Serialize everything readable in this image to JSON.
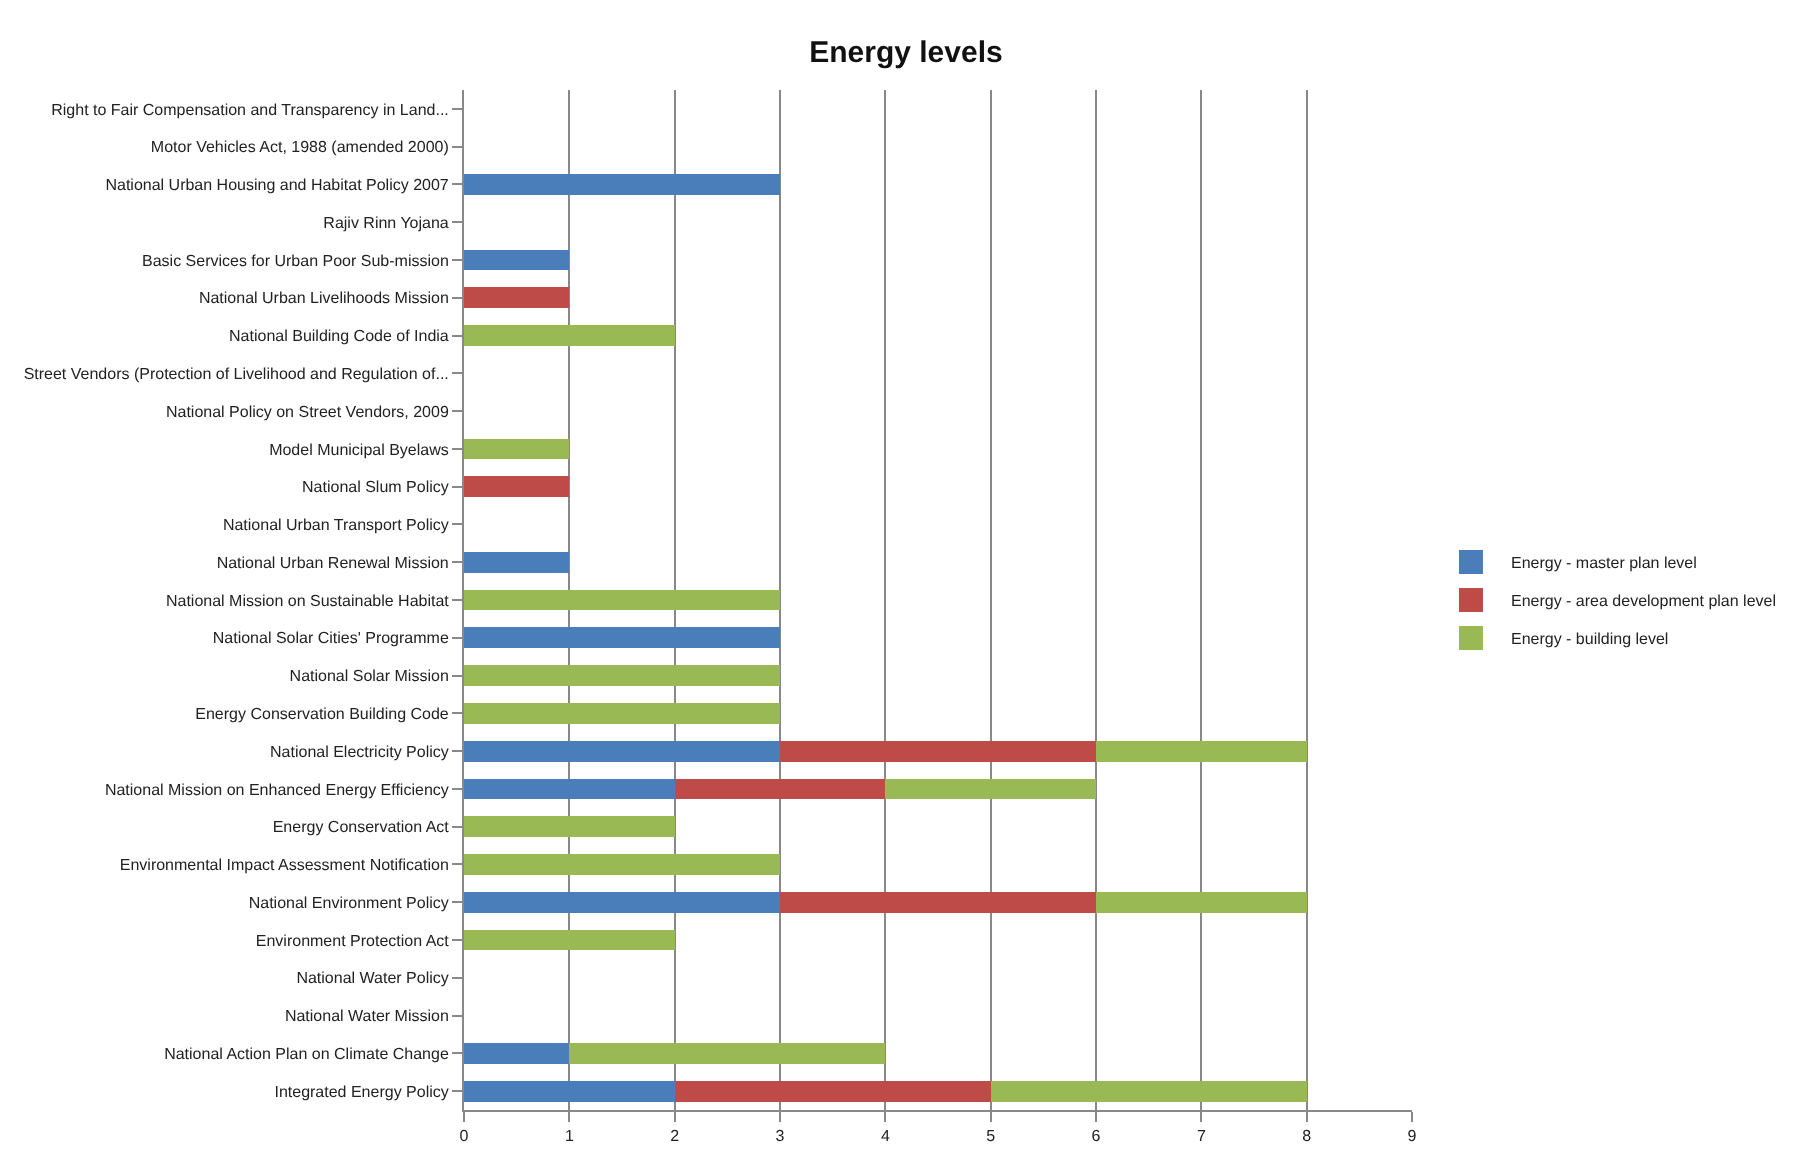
{
  "chart_data": {
    "type": "bar",
    "orientation": "horizontal",
    "stacked": true,
    "title": "Energy levels",
    "categories": [
      "Right to Fair Compensation and Transparency in Land...",
      "Motor Vehicles Act, 1988 (amended 2000)",
      "National Urban Housing and Habitat Policy 2007",
      "Rajiv Rinn Yojana",
      "Basic Services for Urban Poor Sub-mission",
      "National Urban Livelihoods Mission",
      "National Building Code of India",
      "Street Vendors (Protection of Livelihood and Regulation of...",
      "National Policy on Street Vendors, 2009",
      "Model Municipal Byelaws",
      "National Slum Policy",
      "National Urban Transport Policy",
      "National Urban Renewal Mission",
      "National Mission on Sustainable Habitat",
      "National Solar Cities' Programme",
      "National Solar Mission",
      "Energy Conservation Building Code",
      "National Electricity Policy",
      "National Mission on Enhanced Energy Efficiency",
      "Energy Conservation Act",
      "Environmental Impact Assessment Notification",
      "National Environment Policy",
      "Environment Protection Act",
      "National Water Policy",
      "National Water Mission",
      "National Action Plan on Climate Change",
      "Integrated Energy Policy"
    ],
    "series": [
      {
        "name": "Energy - master plan level",
        "color": "#4a7ebb",
        "values": [
          0,
          0,
          3,
          0,
          1,
          0,
          0,
          0,
          0,
          0,
          0,
          0,
          1,
          0,
          3,
          0,
          0,
          3,
          2,
          0,
          0,
          3,
          0,
          0,
          0,
          1,
          2
        ]
      },
      {
        "name": "Energy - area development plan level",
        "color": "#be4b48",
        "values": [
          0,
          0,
          0,
          0,
          0,
          1,
          0,
          0,
          0,
          0,
          1,
          0,
          0,
          0,
          0,
          0,
          0,
          3,
          2,
          0,
          0,
          3,
          0,
          0,
          0,
          0,
          3
        ]
      },
      {
        "name": "Energy - building level",
        "color": "#98b954",
        "values": [
          0,
          0,
          0,
          0,
          0,
          0,
          2,
          0,
          0,
          1,
          0,
          0,
          0,
          3,
          0,
          3,
          3,
          2,
          2,
          2,
          3,
          2,
          2,
          0,
          0,
          3,
          3
        ]
      }
    ],
    "xlim": [
      0,
      9
    ],
    "xticks": [
      0,
      1,
      2,
      3,
      4,
      5,
      6,
      7,
      8,
      9
    ],
    "grid": "x",
    "legend": "right"
  }
}
